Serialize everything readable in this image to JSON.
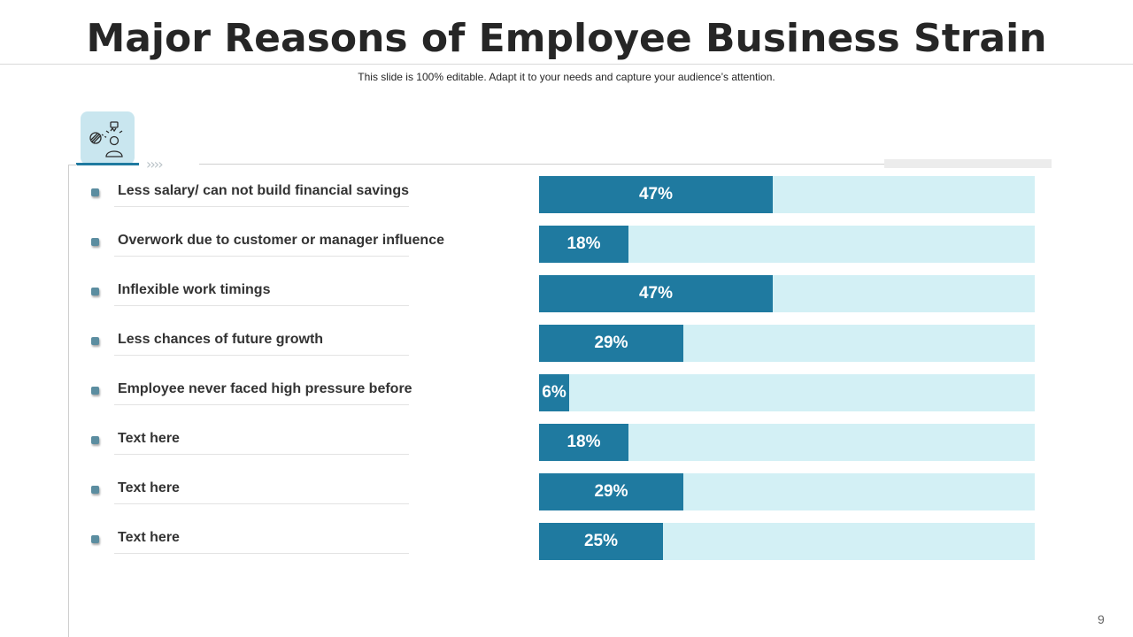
{
  "slide": {
    "title": "Major Reasons of Employee Business Strain",
    "subtitle": "This slide is 100% editable. Adapt it to your needs and capture your audience’s attention.",
    "page_number": "9",
    "icon": "employee-stress-icon"
  },
  "colors": {
    "bar_fill": "#1f7aa0",
    "bar_track": "#d3f0f5",
    "bullet": "#5b8da0",
    "icon_bg": "#c9e6ef"
  },
  "chart_data": {
    "type": "bar",
    "orientation": "horizontal",
    "title": "Major Reasons of Employee Business Strain",
    "categories": [
      "Less salary/ can not build financial savings",
      "Overwork due to customer or manager influence",
      "Inflexible work timings",
      "Less chances of future growth",
      "Employee never faced high pressure before",
      "Text here",
      "Text here",
      "Text here"
    ],
    "values": [
      47,
      18,
      47,
      29,
      6,
      18,
      29,
      25
    ],
    "labels": [
      "47%",
      "18%",
      "47%",
      "29%",
      "6%",
      "18%",
      "29%",
      "25%"
    ],
    "xlim": [
      0,
      100
    ],
    "unit": "%",
    "grid": false,
    "legend": "none"
  }
}
